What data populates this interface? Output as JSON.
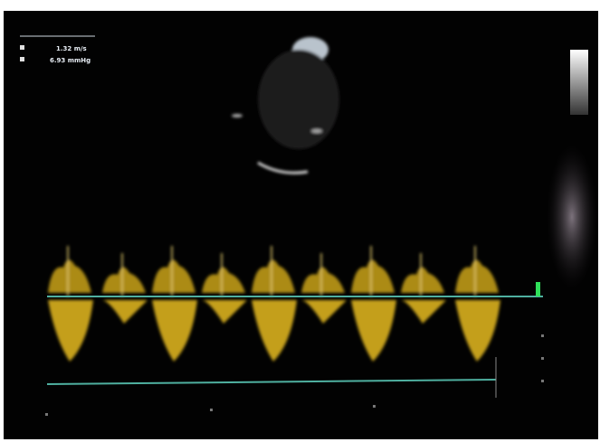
{
  "overlay": {
    "velocity": "1.32 m/s",
    "gradient": "6.93 mmHg"
  }
}
